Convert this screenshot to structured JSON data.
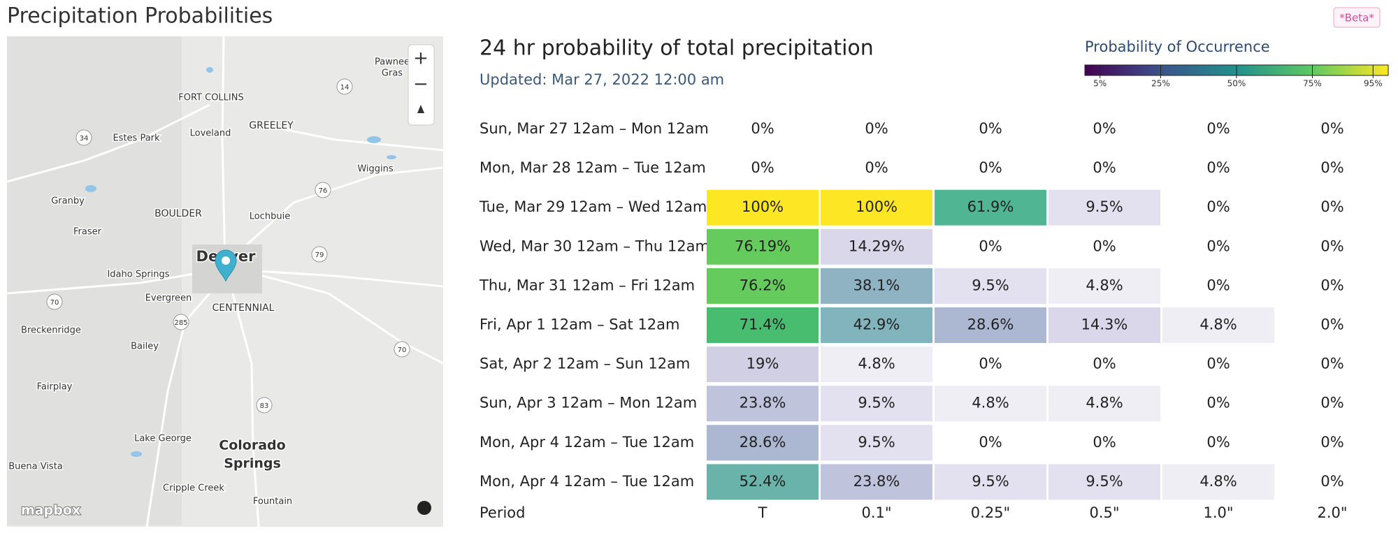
{
  "header": {
    "title": "Precipitation Probabilities",
    "badge": "*Beta*"
  },
  "map": {
    "labels": [
      "FORT COLLINS",
      "GREELEY",
      "Loveland",
      "Estes Park",
      "Wiggins",
      "Granby",
      "BOULDER",
      "Lochbuie",
      "Fraser",
      "Denver",
      "Idaho Springs",
      "Evergreen",
      "CENTENNIAL",
      "Breckenridge",
      "Bailey",
      "Fairplay",
      "Lake George",
      "Colorado",
      "Springs",
      "Buena Vista",
      "Cripple Creek",
      "Fountain",
      "Pawnee",
      "Gras"
    ],
    "shields": [
      "14",
      "34",
      "76",
      "79",
      "70",
      "285",
      "70",
      "83"
    ],
    "attribution": "mapbox"
  },
  "panel": {
    "title": "24 hr probability of total precipitation",
    "updated": "Updated: Mar 27, 2022 12:00 am"
  },
  "legend": {
    "title": "Probability of Occurrence",
    "ticks": [
      {
        "value": 5,
        "label": "5%"
      },
      {
        "value": 25,
        "label": "25%"
      },
      {
        "value": 50,
        "label": "50%"
      },
      {
        "value": 75,
        "label": "75%"
      },
      {
        "value": 95,
        "label": "95%"
      }
    ]
  },
  "table": {
    "columns": [
      "Period",
      "T",
      "0.1\"",
      "0.25\"",
      "0.5\"",
      "1.0\"",
      "2.0\""
    ],
    "rows": [
      [
        "Sun, Mar 27 12am – Mon 12am",
        "0%",
        "0%",
        "0%",
        "0%",
        "0%",
        "0%"
      ],
      [
        "Mon, Mar 28 12am – Tue 12am",
        "0%",
        "0%",
        "0%",
        "0%",
        "0%",
        "0%"
      ],
      [
        "Tue, Mar 29 12am – Wed 12am",
        "100%",
        "100%",
        "61.9%",
        "9.5%",
        "0%",
        "0%"
      ],
      [
        "Wed, Mar 30 12am – Thu 12am",
        "76.19%",
        "14.29%",
        "0%",
        "0%",
        "0%",
        "0%"
      ],
      [
        "Thu, Mar 31 12am – Fri 12am",
        "76.2%",
        "38.1%",
        "9.5%",
        "4.8%",
        "0%",
        "0%"
      ],
      [
        "Fri, Apr 1 12am – Sat 12am",
        "71.4%",
        "42.9%",
        "28.6%",
        "14.3%",
        "4.8%",
        "0%"
      ],
      [
        "Sat, Apr 2 12am – Sun 12am",
        "19%",
        "4.8%",
        "0%",
        "0%",
        "0%",
        "0%"
      ],
      [
        "Sun, Apr 3 12am – Mon 12am",
        "23.8%",
        "9.5%",
        "4.8%",
        "4.8%",
        "0%",
        "0%"
      ],
      [
        "Mon, Apr 4 12am – Tue 12am",
        "28.6%",
        "9.5%",
        "0%",
        "0%",
        "0%",
        "0%"
      ],
      [
        "Mon, Apr 4 12am – Tue 12am",
        "52.4%",
        "23.8%",
        "9.5%",
        "9.5%",
        "4.8%",
        "0%"
      ]
    ]
  }
}
